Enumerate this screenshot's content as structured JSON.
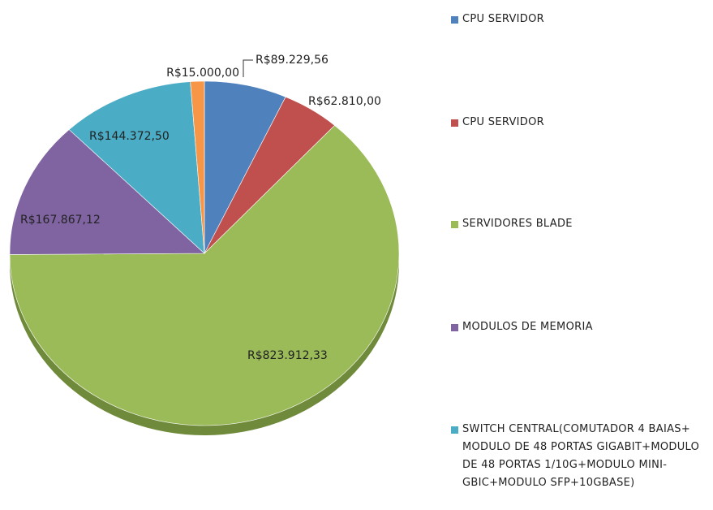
{
  "chart_data": {
    "type": "pie",
    "categories": [
      "CPU SERVIDOR",
      "CPU SERVIDOR",
      "SERVIDORES BLADE",
      "MODULOS DE MEMORIA",
      "SWITCH CENTRAL(COMUTADOR 4 BAIAS+ MODULO DE 48 PORTAS GIGABIT+MODULO DE 48 PORTAS 1/10G+MODULO MINI-GBIC+MODULO SFP+10GBASE)",
      null
    ],
    "values": [
      89229.56,
      62810.0,
      823912.33,
      167867.12,
      144372.5,
      15000.0
    ],
    "value_labels": [
      "R$89.229,56",
      "R$62.810,00",
      "R$823.912,33",
      "R$167.867,12",
      "R$144.372,50",
      "R$15.000,00"
    ],
    "colors": [
      "#4f81bd",
      "#c0504d",
      "#9bbb59",
      "#8064a2",
      "#4bacc6",
      "#f79646"
    ],
    "legend": "right"
  }
}
